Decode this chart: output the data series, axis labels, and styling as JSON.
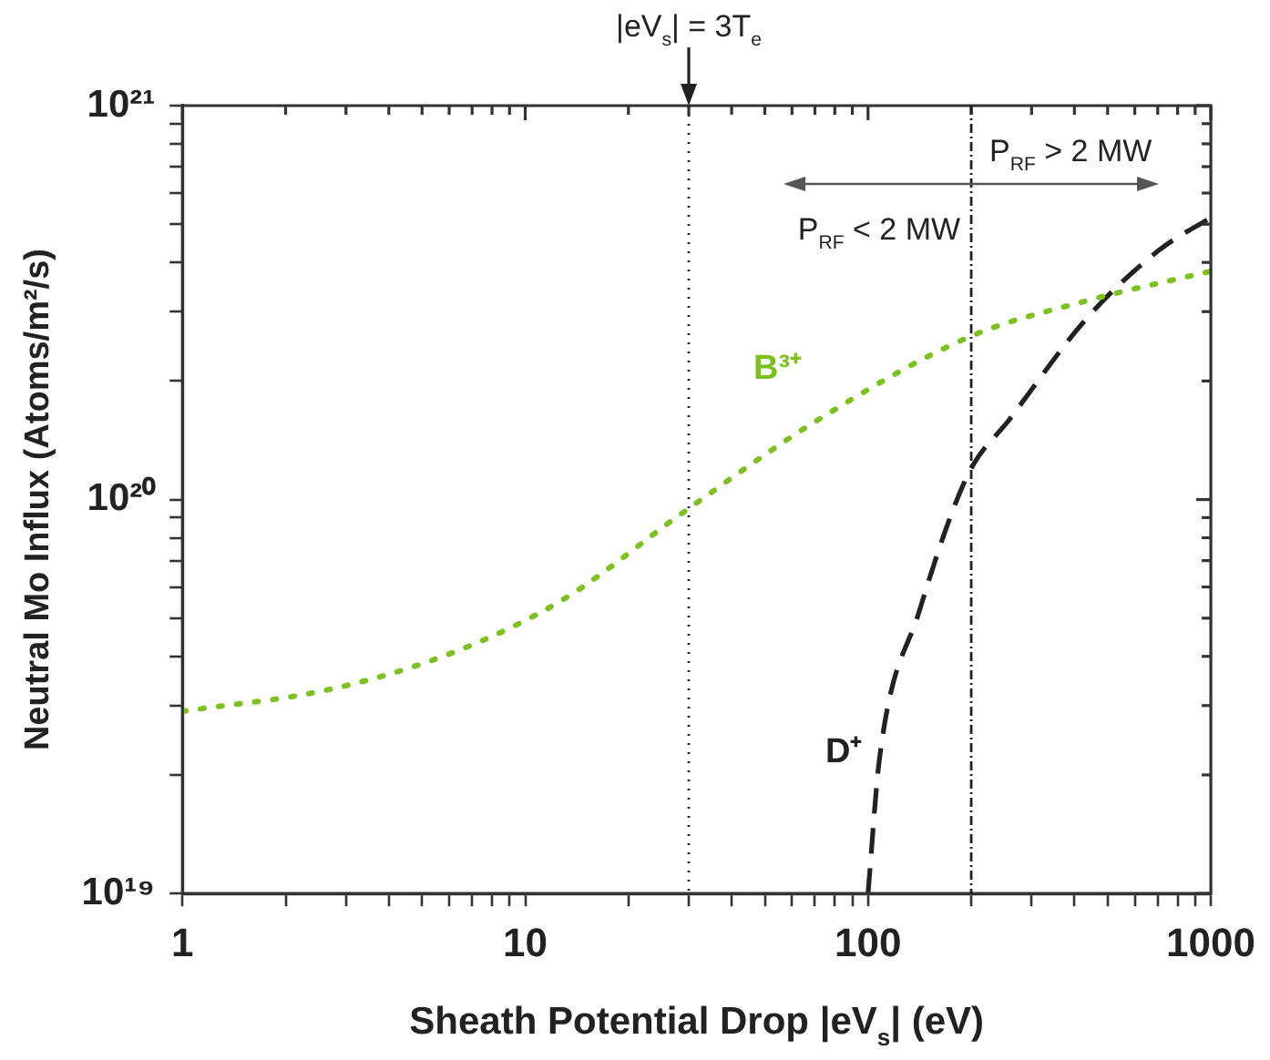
{
  "chart_data": {
    "type": "line",
    "xlabel": "Sheath Potential Drop |eV$_{s}$| (eV)",
    "ylabel": "Neutral Mo Influx (Atoms/m²/s)",
    "log": "xy",
    "grid": false,
    "legend": false,
    "marker": "none",
    "xlim": [
      1,
      1000
    ],
    "xticks": [
      1,
      {
        "value": 2,
        "label": null
      },
      {
        "value": 3,
        "label": null
      },
      {
        "value": 4,
        "label": null
      },
      {
        "value": 5,
        "label": null
      },
      {
        "value": 6,
        "label": null
      },
      {
        "value": 7,
        "label": null
      },
      {
        "value": 8,
        "label": null
      },
      {
        "value": 9,
        "label": null
      },
      10,
      {
        "value": 20,
        "label": null
      },
      {
        "value": 30,
        "label": null
      },
      {
        "value": 40,
        "label": null
      },
      {
        "value": 50,
        "label": null
      },
      {
        "value": 60,
        "label": null
      },
      {
        "value": 70,
        "label": null
      },
      {
        "value": 80,
        "label": null
      },
      {
        "value": 90,
        "label": null
      },
      100,
      {
        "value": 200,
        "label": null
      },
      {
        "value": 300,
        "label": null
      },
      {
        "value": 400,
        "label": null
      },
      {
        "value": 500,
        "label": null
      },
      {
        "value": 600,
        "label": null
      },
      {
        "value": 700,
        "label": null
      },
      {
        "value": 800,
        "label": null
      },
      {
        "value": 900,
        "label": null
      },
      1000
    ],
    "ylim": [
      1e+19,
      1e+21
    ],
    "yticks": [
      {
        "value": 1e+19,
        "label": "10¹⁹"
      },
      {
        "value": 2e+19,
        "label": null
      },
      {
        "value": 3e+19,
        "label": null
      },
      {
        "value": 4e+19,
        "label": null
      },
      {
        "value": 5e+19,
        "label": null
      },
      {
        "value": 6e+19,
        "label": null
      },
      {
        "value": 7e+19,
        "label": null
      },
      {
        "value": 8e+19,
        "label": null
      },
      {
        "value": 9e+19,
        "label": null
      },
      {
        "value": 1e+20,
        "label": "10²⁰"
      },
      {
        "value": 2e+20,
        "label": null
      },
      {
        "value": 3e+20,
        "label": null
      },
      {
        "value": 4e+20,
        "label": null
      },
      {
        "value": 5e+20,
        "label": null
      },
      {
        "value": 6e+20,
        "label": null
      },
      {
        "value": 7e+20,
        "label": null
      },
      {
        "value": 8e+20,
        "label": null
      },
      {
        "value": 9e+20,
        "label": null
      },
      {
        "value": 1e+21,
        "label": "10²¹"
      }
    ],
    "series": [
      {
        "name": "B³⁺",
        "color": "#7dc11f",
        "line_style": "dotted",
        "x": [
          1,
          2.7,
          6.2,
          13,
          29,
          72,
          200,
          437,
          1000
        ],
        "values": [
          2.9e+19,
          3.3e+19,
          4.1e+19,
          5.6e+19,
          9.3e+19,
          1.6e+20,
          2.6e+20,
          3.2e+20,
          3.8e+20
        ]
      },
      {
        "name": "D⁺",
        "color": "#222222",
        "line_style": "dashed",
        "x": [
          100,
          108,
          141,
          195,
          259,
          437,
          707,
          1000
        ],
        "values": [
          1e+19,
          2.2e+19,
          5.2e+19,
          1.15e+20,
          1.6e+20,
          2.9e+20,
          4.3e+20,
          5.2e+20
        ]
      }
    ],
    "ref_lines": [
      {
        "axis": "x",
        "value": 30,
        "line_style": "dotted",
        "color": "#222222"
      },
      {
        "axis": "x",
        "value": 200,
        "line_style": "dashdot",
        "color": "#222222"
      }
    ],
    "annotations": [
      "|eV$_{s}$| = 3T$_{e}$",
      "P$_{RF}$ < 2 MW",
      "P$_{RF}$ > 2 MW"
    ]
  }
}
